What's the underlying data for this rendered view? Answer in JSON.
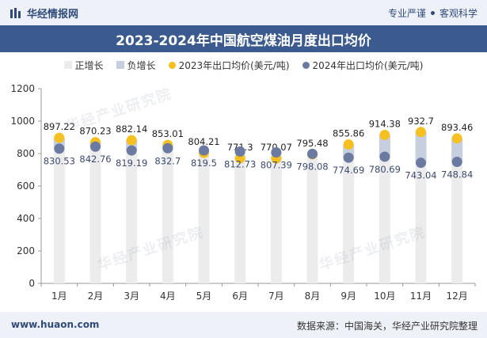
{
  "header": {
    "brand": "华经情报网",
    "tagline_left": "专业严谨",
    "tagline_right": "客观科学"
  },
  "footer": {
    "url": "www.huaon.com",
    "source": "数据来源：中国海关，华经产业研究院整理"
  },
  "watermark": "华经产业研究院",
  "colors": {
    "bar": "#ececec",
    "neg_bar": "#c5cfe0",
    "dot2023": "#f5c020",
    "dot2024": "#6a7aa0",
    "header_band": "#3b5a8f"
  },
  "chart_data": {
    "type": "line",
    "title": "2023-2024年中国航空煤油月度出口均价",
    "legend": [
      "正增长",
      "负增长",
      "2023年出口均价(美元/吨)",
      "2024年出口均价(美元/吨)"
    ],
    "legend_position": "top",
    "categories": [
      "1月",
      "2月",
      "3月",
      "4月",
      "5月",
      "6月",
      "7月",
      "8月",
      "9月",
      "10月",
      "11月",
      "12月"
    ],
    "series": [
      {
        "name": "2023年出口均价(美元/吨)",
        "values": [
          897.22,
          870.23,
          882.14,
          853.01,
          804.21,
          771.3,
          770.07,
          795.48,
          855.86,
          914.38,
          932.7,
          893.46
        ]
      },
      {
        "name": "2024年出口均价(美元/吨)",
        "values": [
          830.53,
          842.76,
          819.19,
          832.7,
          819.5,
          812.73,
          807.39,
          798.08,
          774.69,
          780.69,
          743.04,
          748.84
        ]
      }
    ],
    "value_labels_2023": [
      "897.22",
      "870.23",
      "882.14",
      "853.01",
      "804.21",
      "771.3",
      "770.07",
      "795.48",
      "855.86",
      "914.38",
      "932.7",
      "893.46"
    ],
    "value_labels_2024": [
      "830.53",
      "842.76",
      "819.19",
      "832.7",
      "819.5",
      "812.73",
      "807.39",
      "798.08",
      "774.69",
      "780.69",
      "743.04",
      "748.84"
    ],
    "ylim": [
      0,
      1200
    ],
    "yticks": [
      "0",
      "200",
      "400",
      "600",
      "800",
      "1000",
      "1200"
    ],
    "grid": true
  }
}
